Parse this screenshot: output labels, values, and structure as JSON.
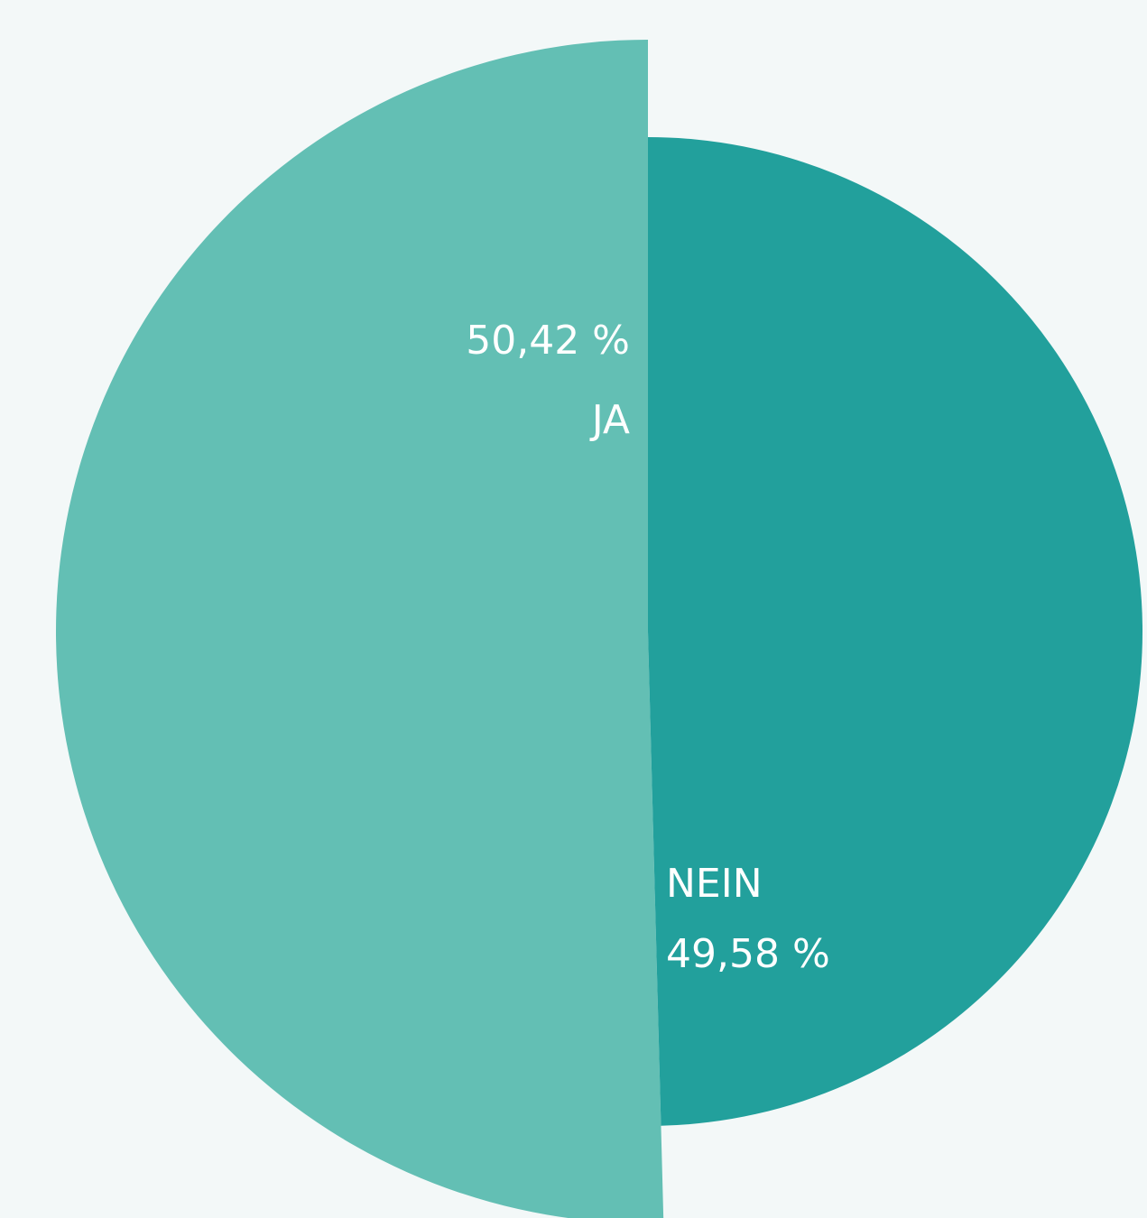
{
  "chart_data": {
    "type": "pie",
    "categories": [
      "JA",
      "NEIN"
    ],
    "values": [
      50.42,
      49.58
    ],
    "value_labels": [
      "50,42 %",
      "49,58 %"
    ],
    "colors": [
      "#63bfb4",
      "#22a09c"
    ]
  }
}
